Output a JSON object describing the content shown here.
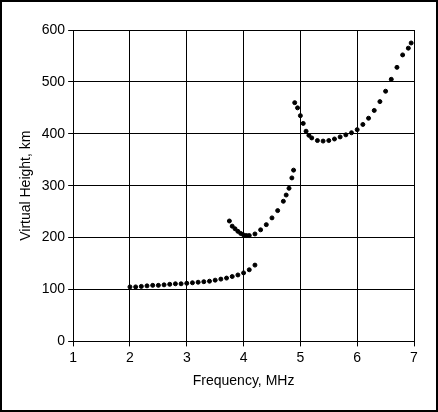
{
  "chart_data": {
    "type": "scatter",
    "xlabel": "Frequency, MHz",
    "ylabel": "Virtual Height, km",
    "xlim": [
      1,
      7
    ],
    "xticks": [
      1,
      2,
      3,
      4,
      5,
      6,
      7
    ],
    "ylim": [
      0,
      600
    ],
    "yticks": [
      0,
      100,
      200,
      300,
      400,
      500,
      600
    ],
    "grid": true,
    "series": [
      {
        "color": "#000000",
        "marker": "circle",
        "x": [
          2.0,
          2.1,
          2.2,
          2.3,
          2.4,
          2.5,
          2.6,
          2.7,
          2.8,
          2.9,
          3.0,
          3.1,
          3.2,
          3.3,
          3.4,
          3.5,
          3.6,
          3.7,
          3.8,
          3.9,
          4.0,
          4.1,
          4.2
        ],
        "values": [
          105,
          105,
          106,
          107,
          108,
          108,
          109,
          110,
          111,
          111,
          112,
          113,
          114,
          115,
          116,
          118,
          120,
          122,
          125,
          128,
          132,
          138,
          147
        ]
      },
      {
        "color": "#000000",
        "marker": "circle",
        "x": [
          3.75,
          3.8,
          3.85,
          3.9,
          3.95,
          4.0,
          4.05,
          4.1,
          4.2,
          4.3,
          4.4,
          4.5,
          4.6,
          4.7,
          4.75,
          4.8,
          4.85,
          4.88
        ],
        "values": [
          232,
          222,
          217,
          212,
          208,
          205,
          204,
          204,
          207,
          215,
          225,
          238,
          252,
          270,
          282,
          295,
          315,
          330
        ]
      },
      {
        "color": "#000000",
        "marker": "circle",
        "x": [
          4.9,
          4.95,
          5.0,
          5.05,
          5.1,
          5.15,
          5.2,
          5.3,
          5.4,
          5.5,
          5.6,
          5.7,
          5.8,
          5.9,
          6.0,
          6.1,
          6.2,
          6.3,
          6.4,
          6.5,
          6.6,
          6.7,
          6.8,
          6.9,
          6.95
        ],
        "values": [
          460,
          450,
          435,
          420,
          405,
          397,
          392,
          387,
          386,
          387,
          390,
          394,
          398,
          402,
          408,
          418,
          430,
          445,
          462,
          482,
          505,
          528,
          552,
          565,
          575
        ]
      }
    ]
  }
}
